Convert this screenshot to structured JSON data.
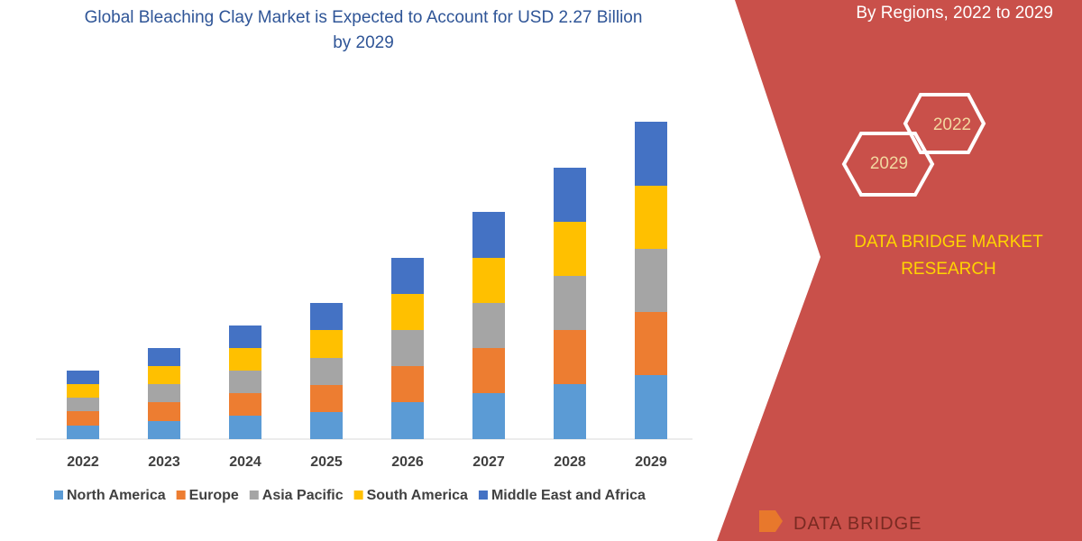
{
  "chart_data": {
    "type": "bar",
    "stacked": true,
    "title": "Global Bleaching Clay Market is Expected to Account for USD 2.27 Billion by 2029",
    "subtitle": "By Regions, 2022 to 2029",
    "categories": [
      "2022",
      "2023",
      "2024",
      "2025",
      "2026",
      "2027",
      "2028",
      "2029"
    ],
    "series": [
      {
        "name": "North America",
        "color": "#5b9bd5",
        "values": [
          15,
          20,
          26,
          30,
          41,
          51,
          61,
          71
        ]
      },
      {
        "name": "Europe",
        "color": "#ed7d31",
        "values": [
          16,
          21,
          25,
          30,
          40,
          50,
          60,
          70
        ]
      },
      {
        "name": "Asia Pacific",
        "color": "#a5a5a5",
        "values": [
          15,
          20,
          25,
          30,
          40,
          50,
          60,
          70
        ]
      },
      {
        "name": "South America",
        "color": "#ffc000",
        "values": [
          15,
          20,
          25,
          31,
          40,
          50,
          60,
          70
        ]
      },
      {
        "name": "Middle East and Africa",
        "color": "#4472c4",
        "values": [
          15,
          20,
          25,
          30,
          40,
          51,
          60,
          71
        ]
      }
    ]
  },
  "hexagon_labels": [
    "2022",
    "2029"
  ],
  "brand": "DATA BRIDGE MARKET RESEARCH",
  "logo": "DATA BRIDGE"
}
